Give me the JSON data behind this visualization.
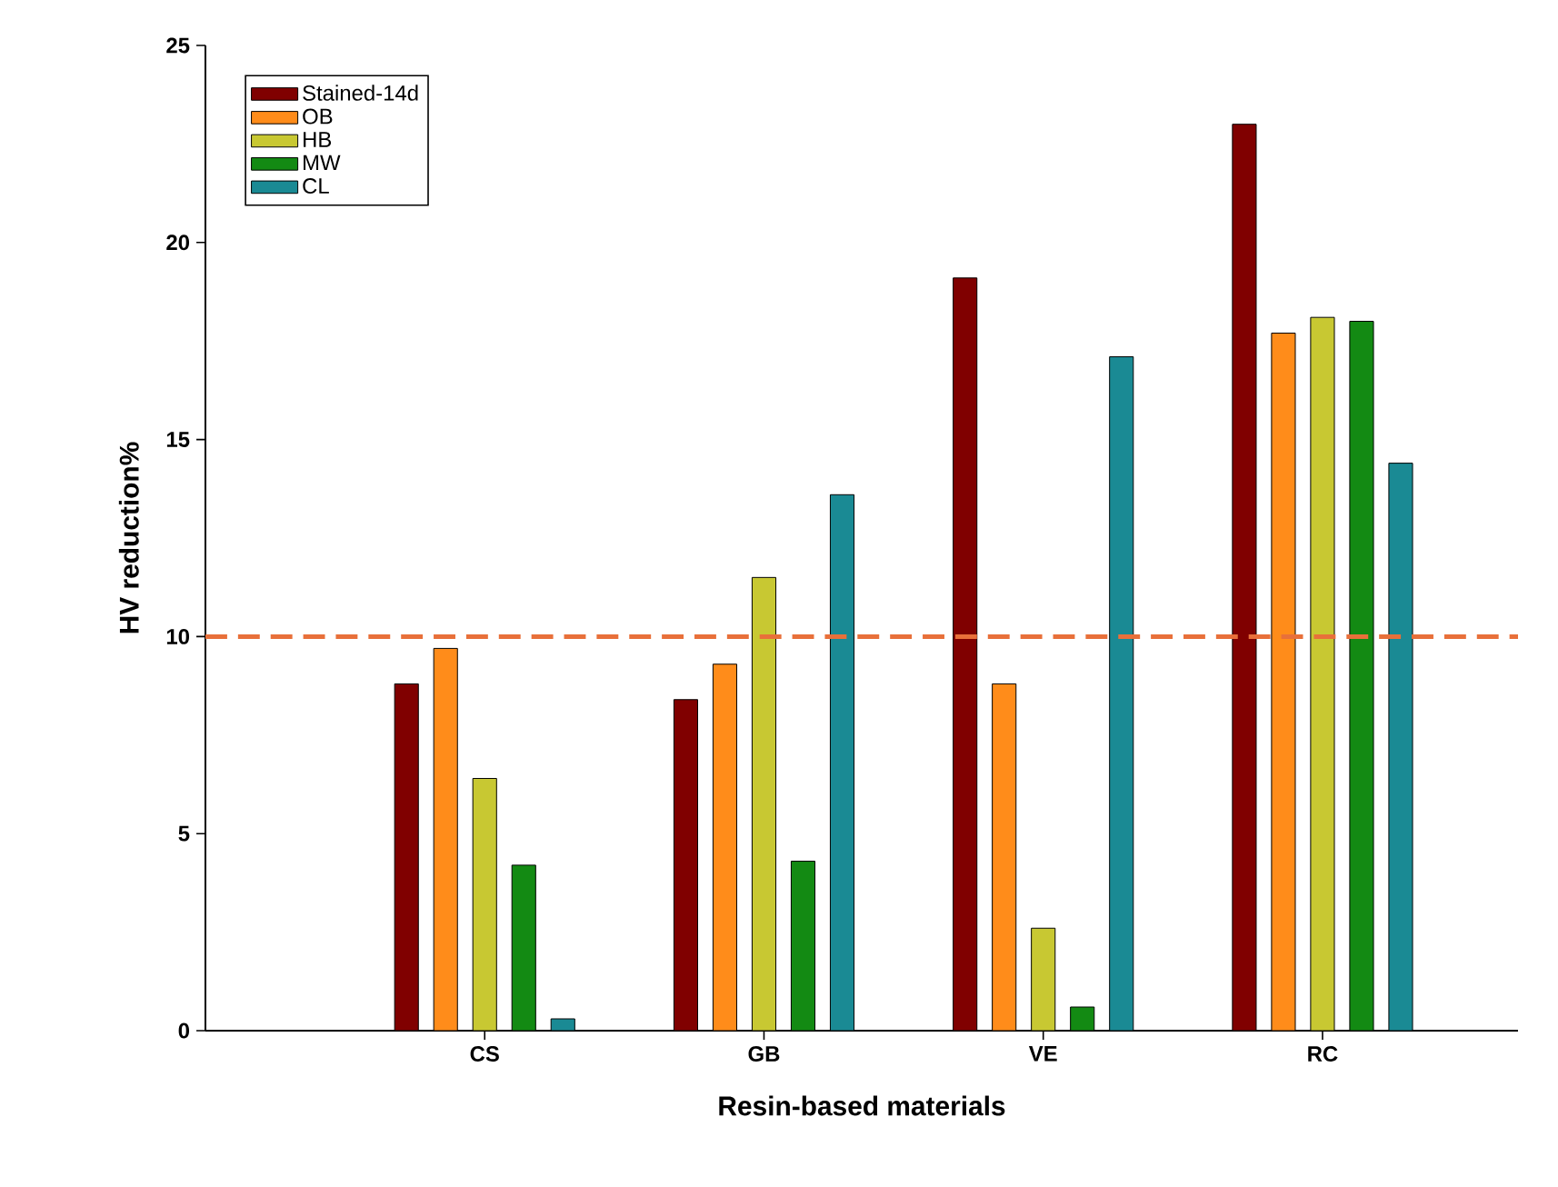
{
  "chart_data": {
    "type": "bar",
    "xlabel": "Resin-based materials",
    "ylabel": "HV reduction%",
    "categories": [
      "CS",
      "GB",
      "VE",
      "RC"
    ],
    "series": [
      {
        "name": "Stained-14d",
        "color": "#800000",
        "values": [
          8.8,
          8.4,
          19.1,
          23.0
        ]
      },
      {
        "name": "OB",
        "color": "#ff8c1a",
        "values": [
          9.7,
          9.3,
          8.8,
          17.7
        ]
      },
      {
        "name": "HB",
        "color": "#c8c832",
        "values": [
          6.4,
          11.5,
          2.6,
          18.1
        ]
      },
      {
        "name": "MW",
        "color": "#138a13",
        "values": [
          4.2,
          4.3,
          0.6,
          18.0
        ]
      },
      {
        "name": "CL",
        "color": "#1a8a94",
        "values": [
          0.3,
          13.6,
          17.1,
          14.4
        ]
      }
    ],
    "ylim": [
      0,
      25
    ],
    "yticks": [
      0,
      5,
      10,
      15,
      20,
      25
    ],
    "ref_lines": [
      {
        "axis": "y",
        "value": 10,
        "color": "#e8703a",
        "line_style": "dashed"
      }
    ],
    "legend": "top left"
  }
}
